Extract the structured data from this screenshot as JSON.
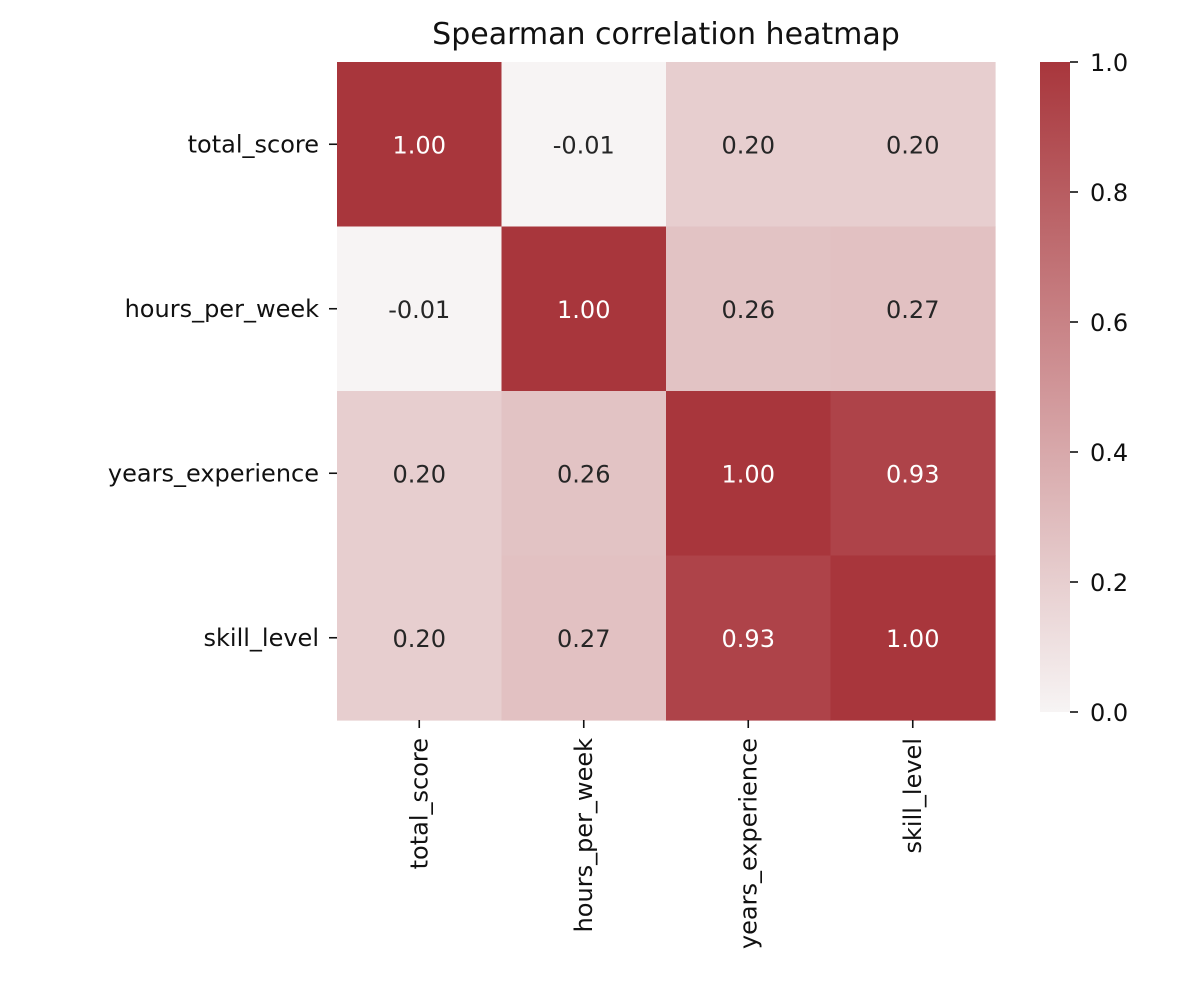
{
  "chart_data": {
    "type": "heatmap",
    "title": "Spearman correlation heatmap",
    "rows": [
      "total_score",
      "hours_per_week",
      "years_experience",
      "skill_level"
    ],
    "columns": [
      "total_score",
      "hours_per_week",
      "years_experience",
      "skill_level"
    ],
    "values": [
      [
        1.0,
        -0.01,
        0.2,
        0.2
      ],
      [
        -0.01,
        1.0,
        0.26,
        0.27
      ],
      [
        0.2,
        0.26,
        1.0,
        0.93
      ],
      [
        0.2,
        0.27,
        0.93,
        1.0
      ]
    ],
    "value_labels": [
      [
        "1.00",
        "-0.01",
        "0.20",
        "0.20"
      ],
      [
        "-0.01",
        "1.00",
        "0.26",
        "0.27"
      ],
      [
        "0.20",
        "0.26",
        "1.00",
        "0.93"
      ],
      [
        "0.20",
        "0.27",
        "0.93",
        "1.00"
      ]
    ],
    "colorbar": {
      "range": [
        0.0,
        1.0
      ],
      "ticks": [
        0.0,
        0.2,
        0.4,
        0.6,
        0.8,
        1.0
      ],
      "tick_labels": [
        "0.0",
        "0.2",
        "0.4",
        "0.6",
        "0.8",
        "1.0"
      ]
    },
    "colors": {
      "low": "#f7f4f4",
      "high": "#a8363c",
      "text_dark": "#262626",
      "text_light": "#ffffff"
    },
    "xlabel": "",
    "ylabel": "",
    "grid": false,
    "legend": "colorbar-right"
  }
}
